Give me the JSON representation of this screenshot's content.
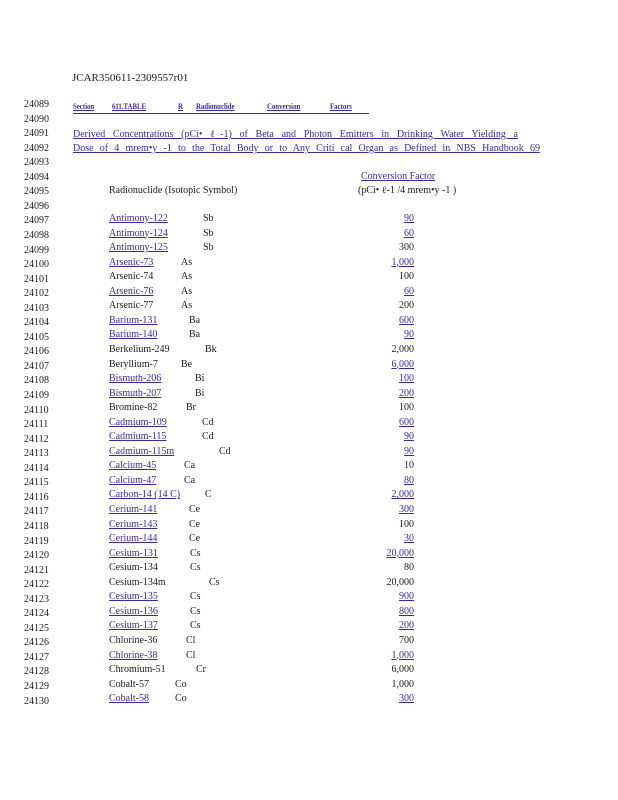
{
  "doc_id": "JCAR350611-2309557r01",
  "line_numbers": [
    "24089",
    "24090",
    "24091",
    "24092",
    "24093",
    "24094",
    "24095",
    "24096",
    "24097",
    "24098",
    "24099",
    "24100",
    "24101",
    "24102",
    "24103",
    "24104",
    "24105",
    "24106",
    "24107",
    "24108",
    "24109",
    "24110",
    "24111",
    "24112",
    "24113",
    "24114",
    "24115",
    "24116",
    "24117",
    "24118",
    "24119",
    "24120",
    "24121",
    "24122",
    "24123",
    "24124",
    "24125",
    "24126",
    "24127",
    "24128",
    "24129",
    "24130"
  ],
  "header_row": {
    "section": "Section",
    "table": "611.TABLE",
    "r": "R",
    "radionuclide": "Radionuclide",
    "conversion": "Conversion",
    "factors": "Factors"
  },
  "title_line1": "Derived Concentrations (pCi• ℓ-1) of Beta and Photon Emitters in Drinking Water Yielding a",
  "title_line2": "Dose of 4 mrem•y -1 to the Total Body or to Any Criti cal Organ as Defined in NBS Handbook 69",
  "col_headers": {
    "conversion_factor": "Conversion Factor",
    "radionuclide": "Radionuclide (Isotopic Symbol)",
    "units": "(pCi• ℓ-1 /4 mrem•y -1 )"
  },
  "rows": [
    {
      "name": "Antimony-122",
      "symbol": "Sb",
      "value": "90"
    },
    {
      "name": "Antimony-124",
      "symbol": "Sb",
      "value": "60"
    },
    {
      "name": "Antimony-125",
      "symbol": "Sb",
      "value": "300"
    },
    {
      "name": "Arsenic-73",
      "symbol": "As",
      "value": "1,000"
    },
    {
      "name": "Arsenic-74",
      "symbol": "As",
      "value": "100"
    },
    {
      "name": "Arsenic-76",
      "symbol": "As",
      "value": "60"
    },
    {
      "name": "Arsenic-77",
      "symbol": "As",
      "value": "200"
    },
    {
      "name": "Barium-131",
      "symbol": "Ba",
      "value": "600"
    },
    {
      "name": "Barium-140",
      "symbol": "Ba",
      "value": "90"
    },
    {
      "name": "Berkelium-249",
      "symbol": "Bk",
      "value": "2,000"
    },
    {
      "name": "Beryllium-7",
      "symbol": "Be",
      "value": "6,000"
    },
    {
      "name": "Bismuth-206",
      "symbol": "Bi",
      "value": "100"
    },
    {
      "name": "Bismuth-207",
      "symbol": "Bi",
      "value": "200"
    },
    {
      "name": "Bromine-82",
      "symbol": "Br",
      "value": "100"
    },
    {
      "name": "Cadmium-109",
      "symbol": "Cd",
      "value": "600"
    },
    {
      "name": "Cadmium-115",
      "symbol": "Cd",
      "value": "90"
    },
    {
      "name": "Cadmium-115m",
      "symbol": "Cd",
      "value": "90"
    },
    {
      "name": "Calcium-45",
      "symbol": "Ca",
      "value": "10"
    },
    {
      "name": "Calcium-47",
      "symbol": "Ca",
      "value": "80"
    },
    {
      "name": "Carbon-14 (14 C)",
      "symbol": "C",
      "value": "2,000"
    },
    {
      "name": "Cerium-141",
      "symbol": "Ce",
      "value": "300"
    },
    {
      "name": "Cerium-143",
      "symbol": "Ce",
      "value": "100"
    },
    {
      "name": "Cerium-144",
      "symbol": "Ce",
      "value": "30"
    },
    {
      "name": "Cesium-131",
      "symbol": "Cs",
      "value": "20,000"
    },
    {
      "name": "Cesium-134",
      "symbol": "Cs",
      "value": "80"
    },
    {
      "name": "Cesium-134m",
      "symbol": "Cs",
      "value": "20,000"
    },
    {
      "name": "Cesium-135",
      "symbol": "Cs",
      "value": "900"
    },
    {
      "name": "Cesium-136",
      "symbol": "Cs",
      "value": "800"
    },
    {
      "name": "Cesium-137",
      "symbol": "Cs",
      "value": "200"
    },
    {
      "name": "Chlorine-36",
      "symbol": "Cl",
      "value": "700"
    },
    {
      "name": "Chlorine-38",
      "symbol": "Cl",
      "value": "1,000"
    },
    {
      "name": "Chromium-51",
      "symbol": "Cr",
      "value": "6,000"
    },
    {
      "name": "Cobalt-57",
      "symbol": "Co",
      "value": "1,000"
    },
    {
      "name": "Cobalt-58",
      "symbol": "Co",
      "value": "300"
    }
  ],
  "colors": {
    "underline_ink": "#3a2a9a",
    "text": "#1a1a1a"
  }
}
